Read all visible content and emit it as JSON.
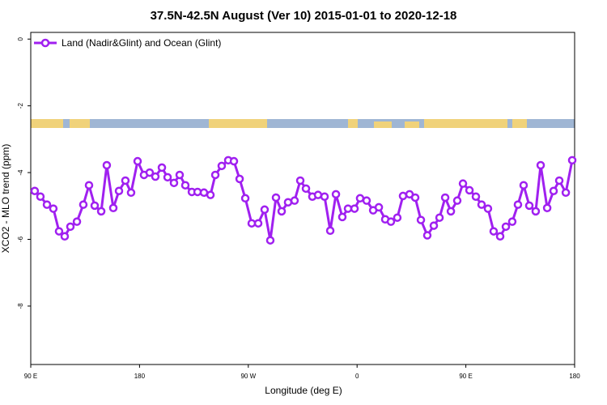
{
  "chart_data": {
    "type": "line",
    "title": "37.5N-42.5N August (Ver 10)   2015-01-01 to 2020-12-18",
    "x_label": "Longitude (deg E)",
    "y_label": "XCO2 - MLO trend (ppm)",
    "xlim": [
      90,
      540
    ],
    "ylim": [
      -9.75,
      0.2
    ],
    "xticks": [
      {
        "value": 90,
        "label": "90 E"
      },
      {
        "value": 180,
        "label": "180"
      },
      {
        "value": 270,
        "label": "90 W"
      },
      {
        "value": 360,
        "label": "0"
      },
      {
        "value": 450,
        "label": "90 E"
      },
      {
        "value": 540,
        "label": "180"
      }
    ],
    "yticks": [
      -8,
      -6,
      -4,
      -2,
      0
    ],
    "legend": "top-left",
    "series": [
      {
        "name": "Land (Nadir&Glint) and Ocean (Glint)",
        "color": "#a020f0",
        "x": [
          93.3,
          98,
          103.4,
          108.7,
          113.4,
          118.1,
          122.8,
          128.2,
          133.5,
          138.2,
          142.9,
          148.3,
          152.9,
          158.3,
          163,
          168.3,
          173,
          178.4,
          183.7,
          188.4,
          193.1,
          198.5,
          203.2,
          208.5,
          213.2,
          217.9,
          223.3,
          228,
          233.3,
          238.7,
          242.7,
          248,
          253.4,
          258.1,
          262.8,
          267.5,
          272.8,
          278.2,
          283.5,
          288.2,
          292.9,
          297.6,
          302.9,
          308.3,
          313,
          317.7,
          323,
          327.7,
          333.1,
          337.8,
          342.5,
          347.8,
          352.5,
          357.9,
          362.5,
          367.9,
          373.3,
          378,
          383.3,
          388,
          393.3,
          398,
          403.4,
          408.1,
          412.8,
          418.1,
          423.5,
          428.2,
          432.9,
          437.6,
          442.9,
          447.6,
          453,
          458.3,
          463,
          468.3,
          473,
          478.4,
          483.1,
          488.4,
          493.1,
          497.8,
          502.5,
          507.8,
          511.9,
          517.3,
          522.6,
          527.3,
          532.7,
          538
        ],
        "values": [
          -4.55,
          -4.72,
          -4.96,
          -5.08,
          -5.76,
          -5.91,
          -5.62,
          -5.47,
          -4.96,
          -4.38,
          -4.99,
          -5.16,
          -3.78,
          -5.06,
          -4.55,
          -4.24,
          -4.6,
          -3.66,
          -4.07,
          -4.0,
          -4.12,
          -3.85,
          -4.14,
          -4.31,
          -4.07,
          -4.38,
          -4.58,
          -4.58,
          -4.6,
          -4.67,
          -4.07,
          -3.8,
          -3.63,
          -3.66,
          -4.19,
          -4.77,
          -5.52,
          -5.52,
          -5.11,
          -6.03,
          -4.75,
          -5.16,
          -4.89,
          -4.84,
          -4.24,
          -4.48,
          -4.72,
          -4.67,
          -4.72,
          -5.74,
          -4.65,
          -5.33,
          -5.08,
          -5.08,
          -4.77,
          -4.84,
          -5.13,
          -5.04,
          -5.4,
          -5.47,
          -5.35,
          -4.7,
          -4.65,
          -4.75,
          -5.42,
          -5.88,
          -5.59,
          -5.35,
          -4.75,
          -5.16,
          -4.84,
          -4.33,
          -4.53,
          -4.72,
          -4.96,
          -5.08,
          -5.76,
          -5.91,
          -5.62,
          -5.47,
          -4.96,
          -4.38,
          -4.99,
          -5.16,
          -3.78,
          -5.06,
          -4.55,
          -4.24,
          -4.6,
          -3.63
        ]
      }
    ]
  }
}
